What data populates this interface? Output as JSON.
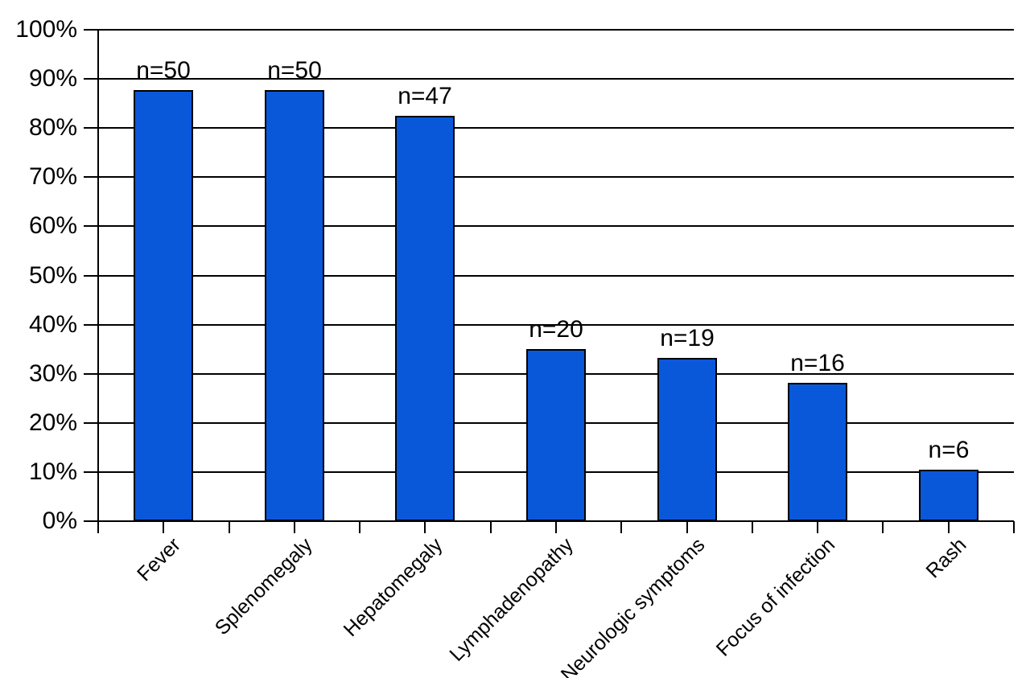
{
  "chart_data": {
    "type": "bar",
    "title": "",
    "xlabel": "",
    "ylabel": "",
    "categories": [
      "Fever",
      "Splenomegaly",
      "Hepatomegaly",
      "Lymphadenopathy",
      "Neurologic symptoms",
      "Focus of infection",
      "Rash"
    ],
    "values": [
      87.7,
      87.7,
      82.5,
      35.1,
      33.3,
      28.1,
      10.5
    ],
    "bar_value_labels": [
      "n=50",
      "n=50",
      "n=47",
      "n=20",
      "n=19",
      "n=16",
      "n=6"
    ],
    "counts": [
      50,
      50,
      47,
      20,
      19,
      16,
      6
    ],
    "y_axis": {
      "min": 0,
      "max": 100,
      "tick_step": 10,
      "tick_labels": [
        "0%",
        "10%",
        "20%",
        "30%",
        "40%",
        "50%",
        "60%",
        "70%",
        "80%",
        "90%",
        "100%"
      ],
      "format": "percent"
    },
    "grid": "horizontal-major",
    "legend": "none",
    "x_tick_marks": "half-category-interval",
    "category_label_rotation_deg": 45,
    "colors": {
      "bar_fill": "#0a58da",
      "bar_border": "#000000",
      "axis": "#000000",
      "gridline": "#000000",
      "text": "#000000",
      "background": "#ffffff"
    }
  }
}
